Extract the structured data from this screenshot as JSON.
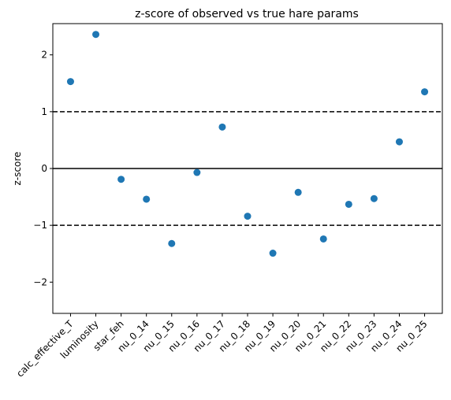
{
  "chart_data": {
    "type": "scatter",
    "title": "z-score of observed vs true hare params",
    "xlabel": "",
    "ylabel": "z-score",
    "ylim": [
      -2.55,
      2.55
    ],
    "yticks": [
      -2,
      -1,
      0,
      1,
      2
    ],
    "ytick_labels": [
      "−2",
      "−1",
      "0",
      "1",
      "2"
    ],
    "grid": false,
    "categories": [
      "calc_effective_T",
      "luminosity",
      "star_feh",
      "nu_0_14",
      "nu_0_15",
      "nu_0_16",
      "nu_0_17",
      "nu_0_18",
      "nu_0_19",
      "nu_0_20",
      "nu_0_21",
      "nu_0_22",
      "nu_0_23",
      "nu_0_24",
      "nu_0_25"
    ],
    "series": [
      {
        "values": [
          1.53,
          2.36,
          -0.19,
          -0.54,
          -1.32,
          -0.07,
          0.73,
          -0.84,
          -1.49,
          -0.42,
          -1.24,
          -0.63,
          -0.53,
          0.47,
          1.35
        ],
        "color": "#1f77b4"
      }
    ],
    "reference_lines": [
      {
        "y": 1,
        "style": "dashed",
        "color": "#000000"
      },
      {
        "y": 0,
        "style": "solid",
        "color": "#000000"
      },
      {
        "y": -1,
        "style": "dashed",
        "color": "#000000"
      }
    ]
  }
}
